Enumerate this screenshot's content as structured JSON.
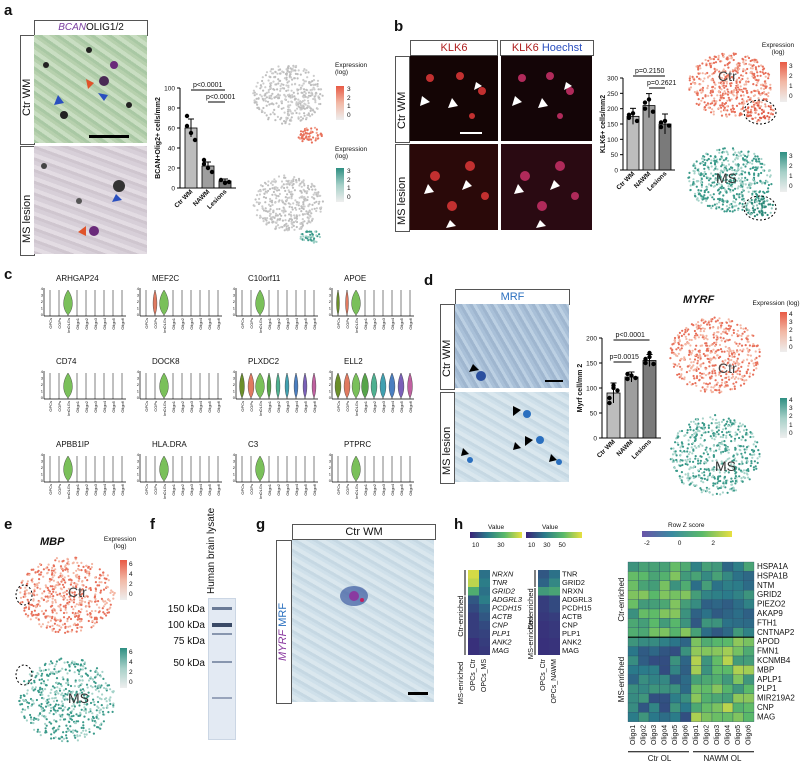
{
  "panels": {
    "a": "a",
    "b": "b",
    "c": "c",
    "d": "d",
    "e": "e",
    "f": "f",
    "g": "g",
    "h": "h"
  },
  "a": {
    "stain_gene": "BCAN",
    "stain_rest": "OLIG1/2",
    "row_top": "Ctr WM",
    "row_bottom": "MS lesion",
    "ylabel": "BCAN+Olig2+ cells/mm2",
    "p1": "p<0.0001",
    "p2": "p<0.0001",
    "legend_top": "Expression (log)",
    "legend_bottom": "Expression (log)",
    "legend_ticks_top": [
      "3",
      "2",
      "1",
      "0"
    ],
    "legend_ticks_bottom": [
      "3",
      "2",
      "1",
      "0"
    ]
  },
  "b": {
    "header1": "KLK6",
    "header2_red": "KLK6",
    "header2_blue": "Hoechst",
    "row_top": "Ctr WM",
    "row_bottom": "MS lesion",
    "ylabel": "KLK6+ cells/mm2",
    "p1": "p=0.2150",
    "p2": "p=0.2621",
    "legend": "Expression (log)",
    "tsne_top": "Ctr",
    "tsne_bottom": "MS",
    "legend_ticks_top": [
      "3",
      "2",
      "1",
      "0"
    ],
    "legend_ticks_bottom": [
      "3",
      "2",
      "1",
      "0"
    ]
  },
  "c": {
    "genes": [
      "ARHGAP24",
      "MEF2C",
      "C10orf11",
      "APOE",
      "CD74",
      "DOCK8",
      "PLXDC2",
      "ELL2",
      "APBB1IP",
      "HLA.DRA",
      "C3",
      "PTPRC"
    ],
    "xcats": [
      "OPCs",
      "COPs",
      "ImOLGs",
      "Oligo1",
      "Oligo2",
      "Oligo3",
      "Oligo4",
      "Oligo5",
      "Oligo6"
    ]
  },
  "d": {
    "header": "MRF",
    "row_top": "Ctr WM",
    "row_bottom": "MS lesion",
    "ylabel": "Myrf cell/mm 2",
    "p1": "p<0.0001",
    "p2": "p=0.0015",
    "gene": "MYRF",
    "legend": "Expression (log)",
    "tsne_top": "Ctr",
    "tsne_bottom": "MS",
    "legend_ticks_top": [
      "4",
      "3",
      "2",
      "1",
      "0"
    ],
    "legend_ticks_bottom": [
      "4",
      "3",
      "2",
      "1",
      "0"
    ]
  },
  "e": {
    "gene": "MBP",
    "legend": "Expression (log)",
    "tsne_top": "Ctr",
    "tsne_bottom": "MS",
    "legend_ticks_top": [
      "6",
      "4",
      "2",
      "0"
    ],
    "legend_ticks_bottom": [
      "6",
      "4",
      "2",
      "0"
    ]
  },
  "f": {
    "lane_label": "Human brain lysate",
    "markers": [
      "150 kDa",
      "100 kDa",
      "75 kDa",
      "50 kDa"
    ]
  },
  "g": {
    "header": "Ctr WM",
    "gene": "MYRF",
    "protein": "MRF"
  },
  "h": {
    "legend1": "Value",
    "legend1_ticks": [
      "10",
      "30"
    ],
    "legend2": "Value",
    "legend2_ticks": [
      "10",
      "30",
      "50"
    ],
    "legend3": "Row Z score",
    "legend3_ticks": [
      "-2",
      "0",
      "2"
    ],
    "group_ctr": "Ctr-enriched",
    "group_ms": "MS-enriched",
    "hm1_genes": [
      "NRXN",
      "TNR",
      "GRID2",
      "ADGRL3",
      "PCDH15",
      "ACTB",
      "CNP",
      "PLP1",
      "ANK2",
      "MAG"
    ],
    "hm1_cols": [
      "OPCs_Ctr",
      "OPCs_MS"
    ],
    "hm2_genes": [
      "TNR",
      "GRID2",
      "NRXN",
      "ADGRL3",
      "PCDH15",
      "ACTB",
      "CNP",
      "PLP1",
      "ANK2",
      "MAG"
    ],
    "hm2_cols": [
      "OPCs_Ctr",
      "OPCs_NAWM"
    ],
    "hm3_genes": [
      "HSPA1A",
      "HSPA1B",
      "NTM",
      "GRID2",
      "PIEZO2",
      "AKAP9",
      "FTH1",
      "CNTNAP2",
      "APOD",
      "FMN1",
      "KCNMB4",
      "MBP",
      "APLP1",
      "PLP1",
      "MIR219A2",
      "CNP",
      "MAG"
    ],
    "hm3_cols": [
      "Oligo1",
      "Oligo2",
      "Oligo3",
      "Oligo4",
      "Oligo5",
      "Oligo6",
      "Oligo1",
      "Oligo2",
      "Oligo3",
      "Oligo4",
      "Oligo5",
      "Oligo6"
    ],
    "hm3_group_ctr": "Ctr OL",
    "hm3_group_nawm": "NAWM OL"
  },
  "chart_data": [
    {
      "type": "bar",
      "categories": [
        "Ctr WM",
        "NAWM",
        "Lesions"
      ],
      "values": [
        60,
        22,
        7
      ],
      "ylabel": "BCAN+Olig2+ cells/mm2",
      "ylim": [
        0,
        100
      ],
      "yticks": [
        0,
        20,
        40,
        60,
        80,
        100
      ]
    },
    {
      "type": "bar",
      "categories": [
        "Ctr WM",
        "NAWM",
        "Lesions"
      ],
      "values": [
        175,
        210,
        150
      ],
      "ylabel": "KLK6+ cells/mm2",
      "ylim": [
        0,
        300
      ],
      "yticks": [
        0,
        50,
        100,
        150,
        200,
        250,
        300
      ]
    },
    {
      "type": "bar",
      "categories": [
        "Ctr WM",
        "NAWM",
        "Lesions"
      ],
      "values": [
        90,
        122,
        155
      ],
      "ylabel": "Myrf cell/mm 2",
      "ylim": [
        0,
        200
      ],
      "yticks": [
        0,
        50,
        100,
        150,
        200
      ]
    }
  ]
}
